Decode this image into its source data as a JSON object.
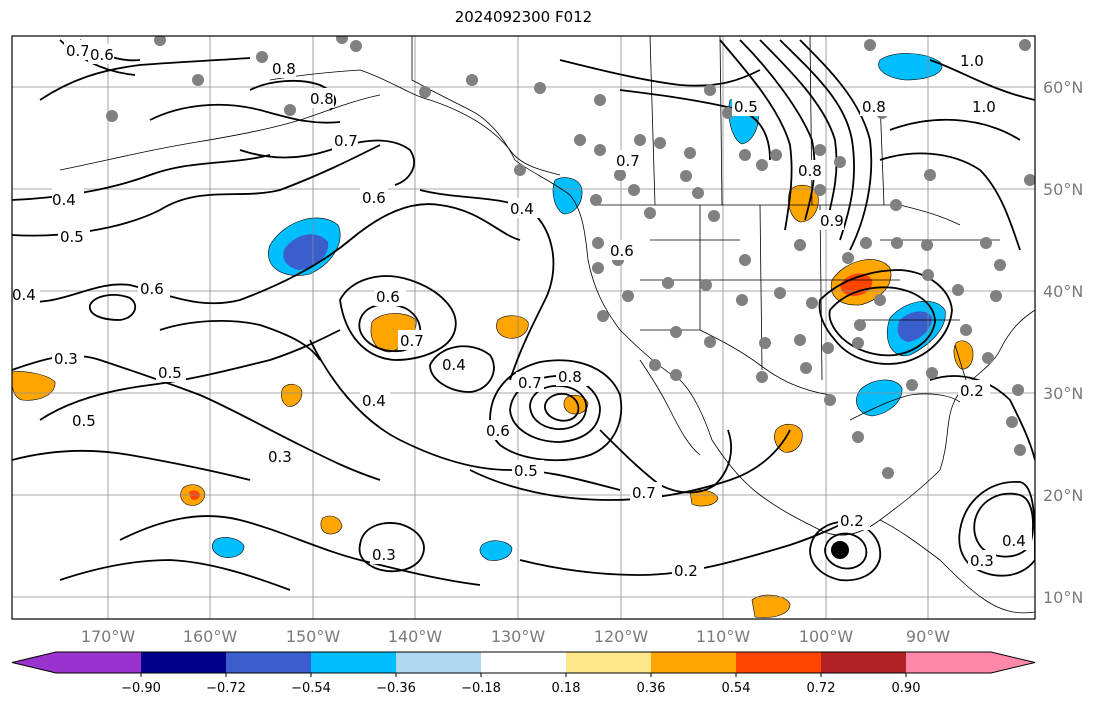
{
  "title": "2024092300 F012",
  "lon_ticks": [
    "170°W",
    "160°W",
    "150°W",
    "140°W",
    "130°W",
    "120°W",
    "110°W",
    "100°W",
    "90°W"
  ],
  "lat_ticks": [
    "60°N",
    "50°N",
    "40°N",
    "30°N",
    "20°N",
    "10°N"
  ],
  "colorbar": {
    "colors": [
      "#9a32cd",
      "#00008b",
      "#3a5fcd",
      "#00bfff",
      "#add8f0",
      "#ffffff",
      "#ffe88a",
      "#ffa500",
      "#ff4500",
      "#b22222",
      "#ff88aa"
    ],
    "labels": [
      "−0.90",
      "−0.72",
      "−0.54",
      "−0.36",
      "−0.18",
      "0.18",
      "0.36",
      "0.54",
      "0.72",
      "0.90"
    ]
  },
  "contour_labels": [
    "0.7",
    "0.6",
    "0.8",
    "0.8",
    "0.7",
    "0.4",
    "0.5",
    "0.6",
    "0.6",
    "0.4",
    "0.3",
    "0.5",
    "0.5",
    "0.3",
    "0.6",
    "0.7",
    "0.4",
    "0.4",
    "0.6",
    "0.7",
    "0.8",
    "0.5",
    "0.7",
    "0.3",
    "0.2",
    "0.2",
    "0.4",
    "0.5",
    "0.8",
    "1.0",
    "0.9",
    "0.8",
    "0.7",
    "0.6",
    "1.0",
    "0.2",
    "0.3",
    "0.4"
  ],
  "colors": {
    "contour": "#000000",
    "land_outline": "#000000",
    "grid": "#8c8c8c",
    "station_marker": "#808080"
  }
}
